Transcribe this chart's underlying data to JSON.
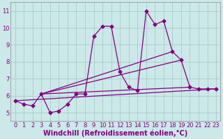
{
  "xlabel": "Windchill (Refroidissement éolien,°C)",
  "background_color": "#cce8e8",
  "grid_color": "#aacccc",
  "line_color": "#800080",
  "x_hours": [
    0,
    1,
    2,
    3,
    4,
    5,
    6,
    7,
    8,
    9,
    10,
    11,
    12,
    13,
    14,
    15,
    16,
    17,
    18,
    19,
    20,
    21,
    22,
    23
  ],
  "y_temp": [
    5.7,
    5.5,
    5.4,
    6.1,
    5.0,
    5.1,
    5.5,
    6.1,
    6.1,
    9.5,
    10.1,
    10.1,
    7.4,
    6.5,
    6.3,
    11.0,
    10.2,
    10.4,
    8.6,
    8.1,
    6.5,
    6.4,
    6.4,
    6.4
  ],
  "ylim": [
    4.5,
    11.5
  ],
  "xlim": [
    -0.5,
    23.5
  ],
  "yticks": [
    5,
    6,
    7,
    8,
    9,
    10,
    11
  ],
  "xticks": [
    0,
    1,
    2,
    3,
    4,
    5,
    6,
    7,
    8,
    9,
    10,
    11,
    12,
    13,
    14,
    15,
    16,
    17,
    18,
    19,
    20,
    21,
    22,
    23
  ],
  "tick_fontsize": 6,
  "xlabel_fontsize": 7,
  "line_width": 0.9,
  "marker_size": 2.5,
  "straight_lines": [
    {
      "x1": 0,
      "y1": 5.7,
      "x2": 23,
      "y2": 6.4
    },
    {
      "x1": 3,
      "y1": 6.1,
      "x2": 19,
      "y2": 8.1
    },
    {
      "x1": 3,
      "y1": 6.1,
      "x2": 20,
      "y2": 6.5
    },
    {
      "x1": 3,
      "y1": 6.1,
      "x2": 18,
      "y2": 8.6
    }
  ]
}
